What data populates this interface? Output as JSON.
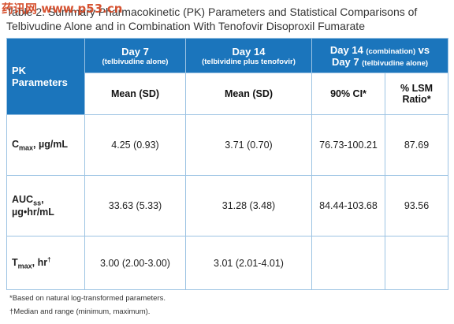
{
  "watermark": "药讯网 www.p53.cn",
  "title": "Table 2. Summary Pharmacokinetic (PK) Parameters and Statistical Comparisons of Telbivudine Alone and in Combination With Tenofovir Disoproxil Fumarate",
  "table": {
    "header": {
      "param": "PK Parameters",
      "day7": {
        "label": "Day 7",
        "note": "(telbivudine alone)"
      },
      "day14": {
        "label": "Day 14",
        "note": "(telbividine plus tenofovir)"
      },
      "comparison": {
        "label1": "Day 14",
        "note1": "(combination)",
        "vs": "vs",
        "label2": "Day 7",
        "note2": "(telbivudine alone)"
      },
      "sub": [
        "Mean (SD)",
        "Mean (SD)",
        "90% CI*",
        "% LSM Ratio*"
      ]
    },
    "rows": [
      {
        "param": {
          "main": "C",
          "sub": "max",
          "rest": ", µg/mL"
        },
        "cells": [
          "4.25 (0.93)",
          "3.71 (0.70)",
          "76.73-100.21",
          "87.69"
        ]
      },
      {
        "param": {
          "main": "AUC",
          "sub": "ss",
          "rest": ",",
          "line2": "µg•hr/mL"
        },
        "cells": [
          "33.63 (5.33)",
          "31.28 (3.48)",
          "84.44-103.68",
          "93.56"
        ]
      },
      {
        "param": {
          "main": "T",
          "sub": "max",
          "rest": ", hr",
          "sup": "†"
        },
        "cells": [
          "3.00 (2.00-3.00)",
          "3.01 (2.01-4.01)"
        ]
      }
    ]
  },
  "footnotes": [
    "*Based on natural log-transformed parameters.",
    "†Median and range (minimum, maximum)."
  ]
}
